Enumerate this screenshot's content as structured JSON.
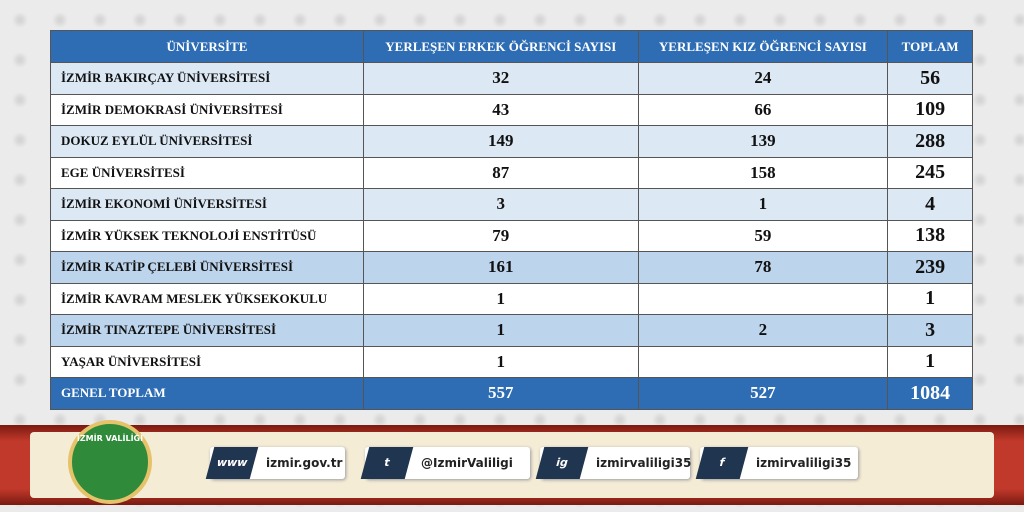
{
  "table": {
    "header": [
      "ÜNİVERSİTE",
      "YERLEŞEN ERKEK ÖĞRENCİ SAYISI",
      "YERLEŞEN KIZ ÖĞRENCİ SAYISI",
      "TOPLAM"
    ],
    "rows": [
      [
        "İZMİR BAKIRÇAY ÜNİVERSİTESİ",
        32,
        24,
        56
      ],
      [
        "İZMİR DEMOKRASİ ÜNİVERSİTESİ",
        43,
        66,
        109
      ],
      [
        "DOKUZ EYLÜL ÜNİVERSİTESİ",
        149,
        139,
        288
      ],
      [
        "EGE ÜNİVERSİTESİ",
        87,
        158,
        245
      ],
      [
        "İZMİR EKONOMİ ÜNİVERSİTESİ",
        3,
        1,
        4
      ],
      [
        "İZMİR YÜKSEK TEKNOLOJİ ENSTİTÜSÜ",
        79,
        59,
        138
      ],
      [
        "İZMİR KATİP ÇELEBİ ÜNİVERSİTESİ",
        161,
        78,
        239
      ],
      [
        "İZMİR KAVRAM MESLEK YÜKSEKOKULU",
        1,
        null,
        1
      ],
      [
        "İZMİR TINAZTEPE ÜNİVERSİTESİ",
        1,
        2,
        3
      ],
      [
        "YAŞAR ÜNİVERSİTESİ",
        1,
        null,
        1
      ]
    ],
    "total": [
      "GENEL TOPLAM",
      557,
      527,
      1084
    ]
  },
  "footer": {
    "logo_text": "İZMİR VALİLİĞİ",
    "links": [
      {
        "icon": "www",
        "text": "izmir.gov.tr"
      },
      {
        "icon": "t",
        "text": "@IzmirValiligi"
      },
      {
        "icon": "ig",
        "text": "izmirvaliligi35"
      },
      {
        "icon": "f",
        "text": "izmirvaliligi35"
      }
    ]
  }
}
